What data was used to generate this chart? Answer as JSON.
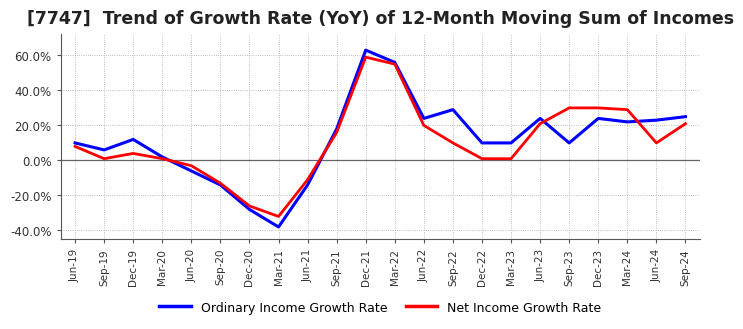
{
  "title": "[7747]  Trend of Growth Rate (YoY) of 12-Month Moving Sum of Incomes",
  "title_fontsize": 12.5,
  "ylim": [
    -0.45,
    0.72
  ],
  "yticks": [
    -0.4,
    -0.2,
    0.0,
    0.2,
    0.4,
    0.6
  ],
  "ytick_labels": [
    "-40.0%",
    "-20.0%",
    "0.0%",
    "20.0%",
    "40.0%",
    "60.0%"
  ],
  "background_color": "#ffffff",
  "plot_bg_color": "#ffffff",
  "grid_color": "#aaaaaa",
  "legend_labels": [
    "Ordinary Income Growth Rate",
    "Net Income Growth Rate"
  ],
  "legend_colors": [
    "#0000ff",
    "#ff0000"
  ],
  "x_labels": [
    "Jun-19",
    "Sep-19",
    "Dec-19",
    "Mar-20",
    "Jun-20",
    "Sep-20",
    "Dec-20",
    "Mar-21",
    "Jun-21",
    "Sep-21",
    "Dec-21",
    "Mar-22",
    "Jun-22",
    "Sep-22",
    "Dec-22",
    "Mar-23",
    "Jun-23",
    "Sep-23",
    "Dec-23",
    "Mar-24",
    "Jun-24",
    "Sep-24"
  ],
  "ordinary_income": [
    0.1,
    0.06,
    0.12,
    0.02,
    -0.06,
    -0.14,
    -0.28,
    -0.38,
    -0.14,
    0.18,
    0.63,
    0.56,
    0.24,
    0.29,
    0.1,
    0.1,
    0.24,
    0.1,
    0.24,
    0.22,
    0.23,
    0.25
  ],
  "net_income": [
    0.08,
    0.01,
    0.04,
    0.01,
    -0.03,
    -0.13,
    -0.26,
    -0.32,
    -0.11,
    0.16,
    0.59,
    0.55,
    0.2,
    0.1,
    0.01,
    0.01,
    0.21,
    0.3,
    0.3,
    0.29,
    0.1,
    0.21
  ]
}
